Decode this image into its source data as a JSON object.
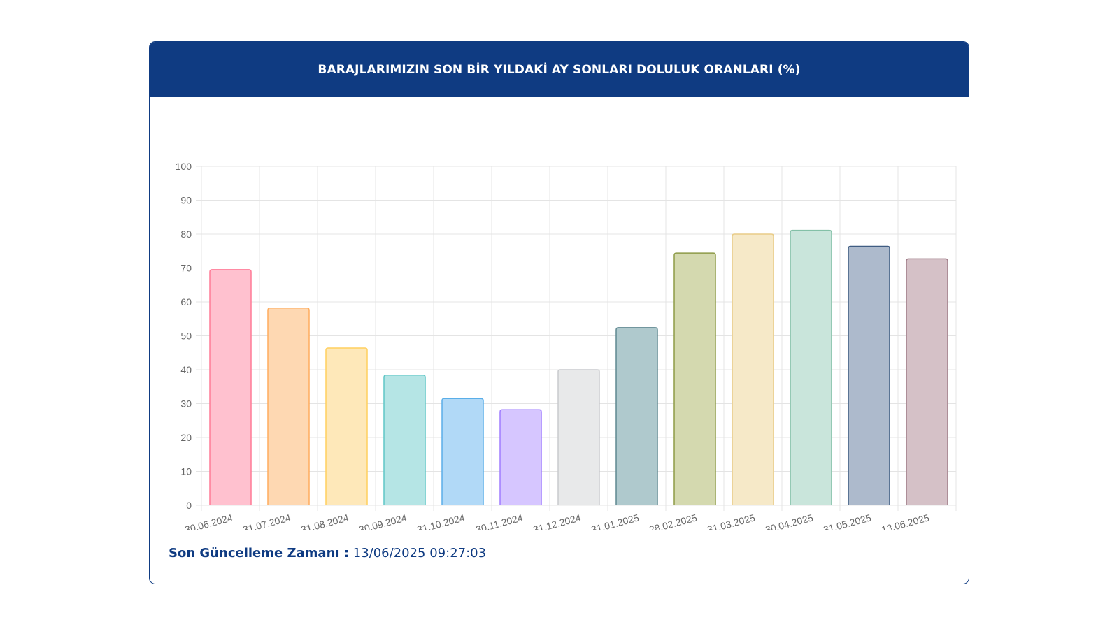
{
  "header": {
    "title": "BARAJLARIMIZIN SON BİR YILDAKİ AY SONLARI DOLULUK ORANLARI (%)"
  },
  "footer": {
    "label": "Son Güncelleme Zamanı :",
    "value": "13/06/2025 09:27:03"
  },
  "colors": {
    "header_bg": "#0f3b82",
    "grid": "#e4e4e4",
    "tick_text": "#666666"
  },
  "chart_data": {
    "type": "bar",
    "title": "BARAJLARIMIZIN SON BİR YILDAKİ AY SONLARI DOLULUK ORANLARI (%)",
    "xlabel": "",
    "ylabel": "",
    "ylim": [
      0,
      100
    ],
    "yticks": [
      "0",
      "10",
      "20",
      "30",
      "40",
      "50",
      "60",
      "70",
      "80",
      "90",
      "100"
    ],
    "grid": true,
    "legend": "none",
    "categories": [
      "30.06.2024",
      "31.07.2024",
      "31.08.2024",
      "30.09.2024",
      "31.10.2024",
      "30.11.2024",
      "31.12.2024",
      "31.01.2025",
      "28.02.2025",
      "31.03.2025",
      "30.04.2025",
      "31.05.2025",
      "13.06.2025"
    ],
    "values": [
      69.5,
      58.2,
      46.4,
      38.4,
      31.5,
      28.2,
      40.0,
      52.4,
      74.4,
      80.0,
      81.1,
      76.4,
      72.7
    ],
    "fills": [
      "#ffc1cf",
      "#fed8b2",
      "#fee8b9",
      "#b5e5e5",
      "#b1d9f7",
      "#d6c6ff",
      "#e8e9ea",
      "#afc9cd",
      "#d4d9af",
      "#f6e9c8",
      "#c9e5db",
      "#adbacc",
      "#d5c1c7"
    ],
    "borders": [
      "#ff7a96",
      "#ffac5d",
      "#ffcf5e",
      "#5ec6c6",
      "#5aaee8",
      "#9f7cff",
      "#c8cacd",
      "#5f8890",
      "#8d9b47",
      "#e9cc87",
      "#83c0a7",
      "#3f5c82",
      "#a07d89"
    ]
  }
}
